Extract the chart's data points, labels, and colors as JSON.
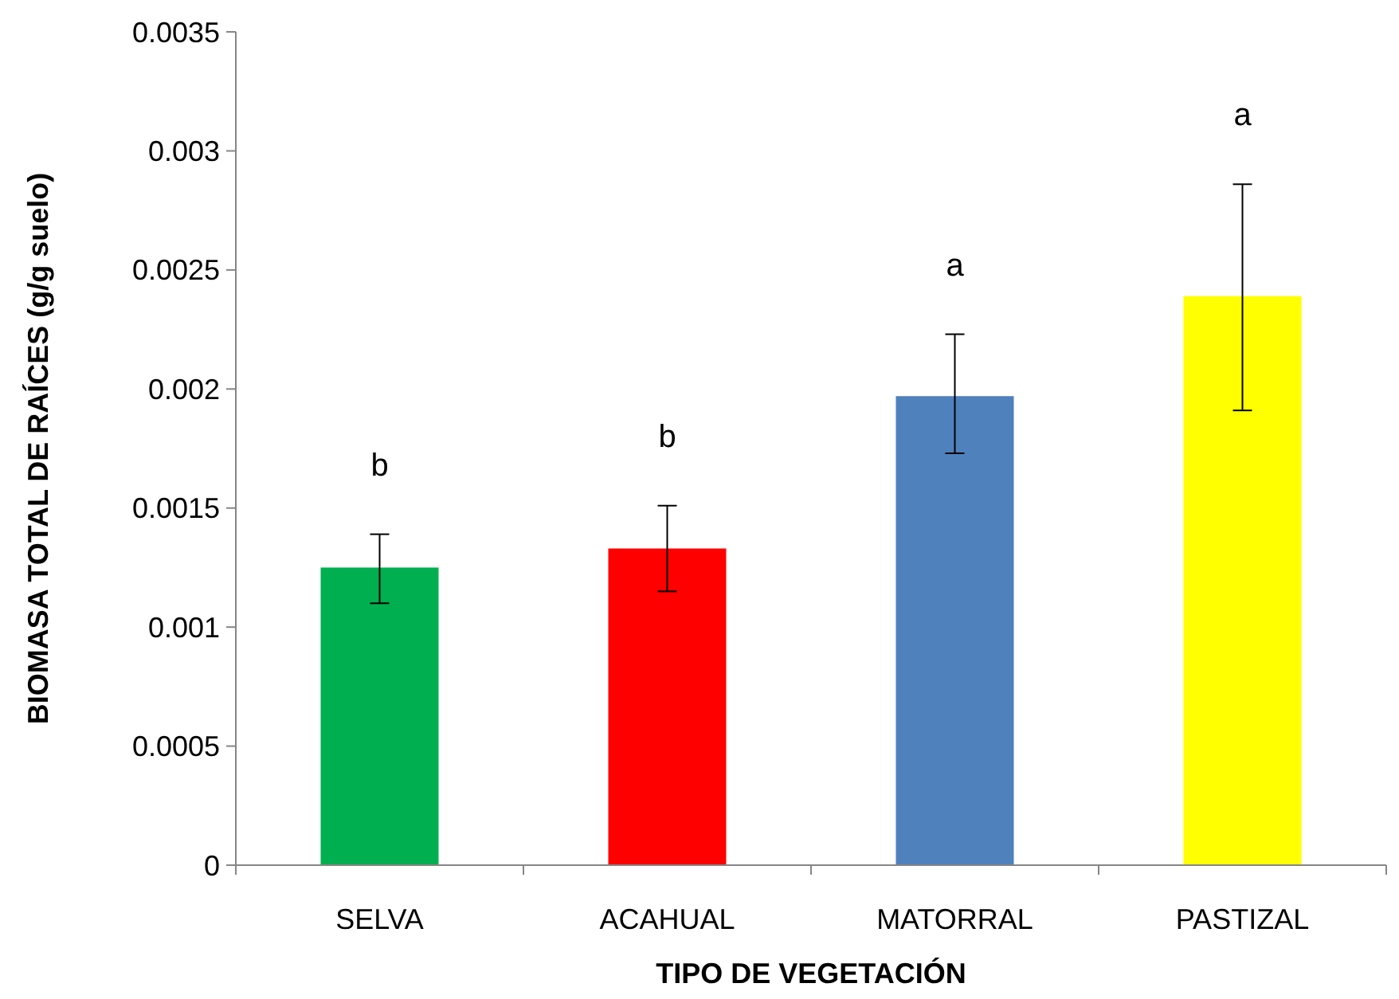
{
  "chart_data": {
    "type": "bar",
    "xlabel": "TIPO DE VEGETACIÓN",
    "ylabel": "BIOMASA TOTAL DE RAÍCES (g/g suelo)",
    "categories": [
      "SELVA",
      "ACAHUAL",
      "MATORRAL",
      "PASTIZAL"
    ],
    "values": [
      0.00125,
      0.00133,
      0.00197,
      0.00239
    ],
    "colors": [
      "#00b050",
      "#ff0000",
      "#4f81bd",
      "#ffff00"
    ],
    "errors": [
      [
        0.0011,
        0.00139
      ],
      [
        0.00115,
        0.00151
      ],
      [
        0.00173,
        0.00223
      ],
      [
        0.00191,
        0.00286
      ]
    ],
    "ylim": [
      0,
      0.0035
    ],
    "yticks": [
      0,
      0.0005,
      0.001,
      0.0015,
      0.002,
      0.0025,
      0.003,
      0.0035
    ],
    "annotations": [
      "b",
      "b",
      "a",
      "a"
    ],
    "grid": false
  }
}
